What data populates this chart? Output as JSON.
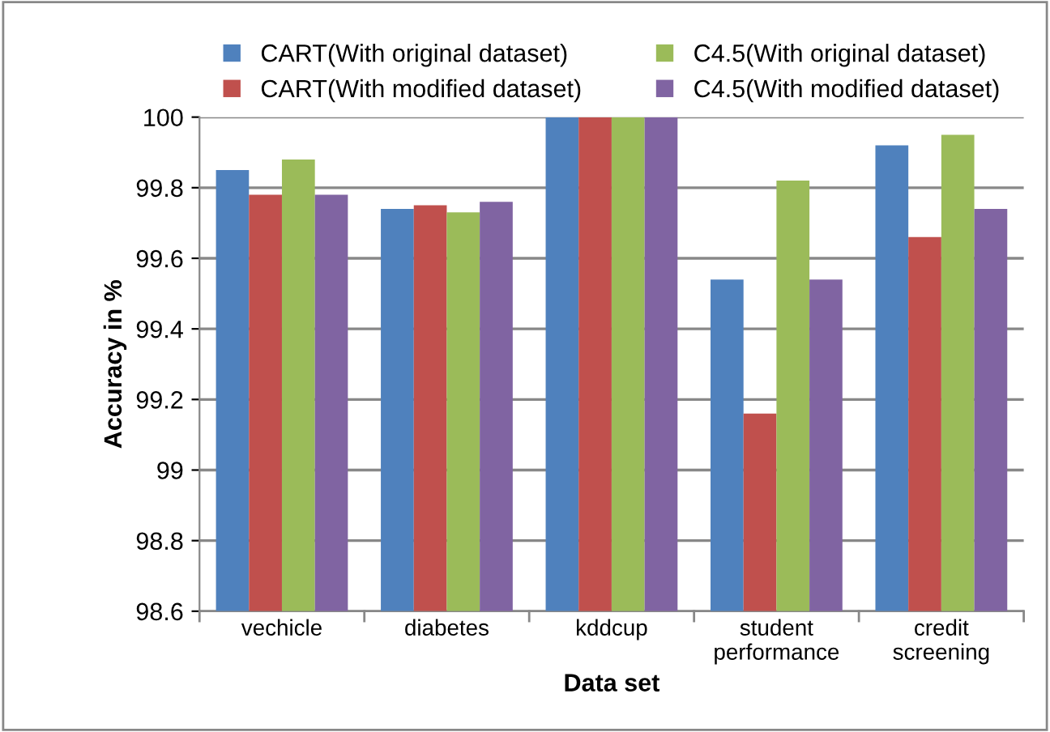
{
  "chart_data": {
    "type": "bar",
    "xlabel": "Data set",
    "ylabel": "Accuracy in %",
    "categories": [
      "vechicle",
      "diabetes",
      "kddcup",
      "student\nperformance",
      "credit\nscreening"
    ],
    "series": [
      {
        "name": "CART(With original dataset)",
        "color": "#4f81bd",
        "values": [
          99.85,
          99.74,
          100,
          99.54,
          99.92
        ]
      },
      {
        "name": "CART(With modified dataset)",
        "color": "#c0504d",
        "values": [
          99.78,
          99.75,
          100,
          99.16,
          99.66
        ]
      },
      {
        "name": "C4.5(With original dataset)",
        "color": "#9bbb59",
        "values": [
          99.88,
          99.73,
          100,
          99.82,
          99.95
        ]
      },
      {
        "name": "C4.5(With modified dataset)",
        "color": "#8064a2",
        "values": [
          99.78,
          99.76,
          100,
          99.54,
          99.74
        ]
      }
    ],
    "ylim": [
      98.6,
      100
    ],
    "yticks": [
      98.6,
      98.8,
      99,
      99.2,
      99.4,
      99.6,
      99.8,
      100
    ],
    "grid": "y",
    "legend": "top"
  }
}
